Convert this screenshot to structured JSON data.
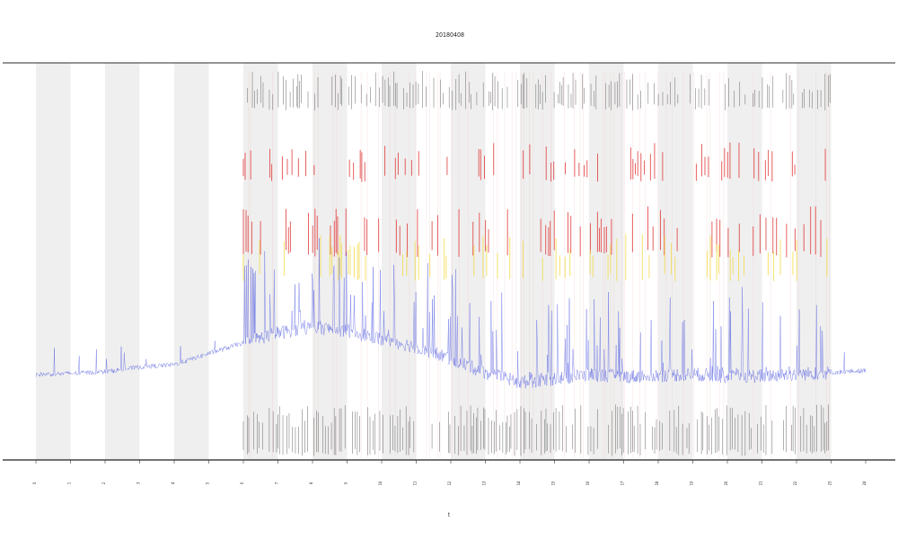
{
  "chart_data": {
    "type": "line",
    "title": "20180408",
    "xlabel": "t",
    "ylabel": "",
    "side_label": "",
    "x_ticks": [
      "0",
      "1",
      "2",
      "3",
      "4",
      "5",
      "6",
      "7",
      "8",
      "9",
      "10",
      "11",
      "12",
      "13",
      "14",
      "15",
      "16",
      "17",
      "18",
      "19",
      "20",
      "21",
      "22",
      "23",
      "24"
    ],
    "xlim": [
      0,
      24
    ],
    "ylim": [
      0,
      100
    ],
    "grid": false,
    "legend": "none",
    "shaded_bands": [
      [
        0,
        1
      ],
      [
        2,
        3
      ],
      [
        4,
        5
      ],
      [
        6,
        7
      ],
      [
        8,
        9
      ],
      [
        10,
        11
      ],
      [
        12,
        13
      ],
      [
        14,
        15
      ],
      [
        16,
        17
      ],
      [
        18,
        19
      ],
      [
        20,
        21
      ],
      [
        22,
        23
      ]
    ],
    "event_window": [
      6.0,
      23.0
    ],
    "series": [
      {
        "color": "#4a55e0",
        "baseline": [
          [
            0,
            21.5
          ],
          [
            1,
            21.8
          ],
          [
            2,
            22.2
          ],
          [
            3,
            23.4
          ],
          [
            4,
            24.0
          ],
          [
            5,
            26.8
          ],
          [
            6,
            29.5
          ],
          [
            7,
            32.0
          ],
          [
            8,
            33.5
          ],
          [
            9,
            32.5
          ],
          [
            10,
            30.5
          ],
          [
            11,
            28.5
          ],
          [
            12,
            25.5
          ],
          [
            13,
            22.0
          ],
          [
            14,
            19.5
          ],
          [
            15,
            20.5
          ],
          [
            16,
            21.5
          ],
          [
            17,
            21.0
          ],
          [
            18,
            21.3
          ],
          [
            19,
            21.6
          ],
          [
            20,
            21.0
          ],
          [
            21,
            21.2
          ],
          [
            22,
            21.6
          ],
          [
            23,
            22.0
          ],
          [
            24,
            22.5
          ]
        ]
      }
    ],
    "marker_rows": [
      {
        "color": "#555555",
        "y": [
          90,
          92
        ]
      },
      {
        "color": "#e03030",
        "y": [
          72,
          74
        ]
      },
      {
        "color": "#e03030",
        "y": [
          53,
          58
        ]
      },
      {
        "color": "#f2d940",
        "y": [
          47,
          51
        ]
      },
      {
        "color": "#555555",
        "y": [
          3,
          8
        ]
      }
    ],
    "colors": {
      "line": "#4a55e0",
      "band": "#efefef",
      "axis": "#333333",
      "red": "#e03030",
      "yellow": "#f2d940",
      "gray": "#555555"
    }
  }
}
